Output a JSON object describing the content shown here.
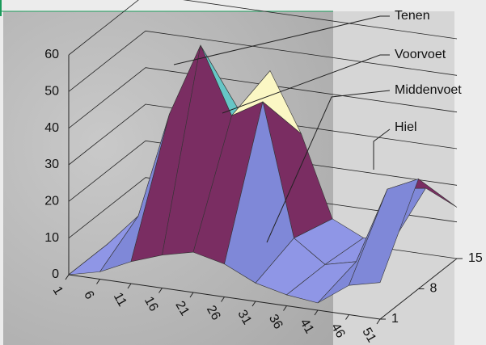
{
  "chart_data": {
    "type": "surface",
    "categories": [
      1,
      6,
      11,
      16,
      21,
      26,
      31,
      36,
      41,
      46,
      51
    ],
    "depth": [
      1,
      8,
      15
    ],
    "rows": [
      [
        0,
        2,
        6,
        9,
        11,
        9,
        5,
        3,
        2,
        8,
        10
      ],
      [
        0,
        9,
        38,
        58,
        40,
        45,
        9,
        3,
        5,
        26,
        30
      ],
      [
        0,
        5,
        22,
        32,
        44,
        28,
        6,
        2,
        3,
        18,
        14
      ]
    ],
    "zlim": [
      0,
      60
    ],
    "zticks": [
      0,
      10,
      20,
      30,
      40,
      50,
      60
    ],
    "band_colors": [
      "#8f96e6",
      "#7f88d8",
      "#7a2d62",
      "#fbf7c4",
      "#66c6c6",
      "#5a2a8e"
    ],
    "annotations": [
      "Tenen",
      "Voorvoet",
      "Middenvoet",
      "Hiel"
    ]
  }
}
